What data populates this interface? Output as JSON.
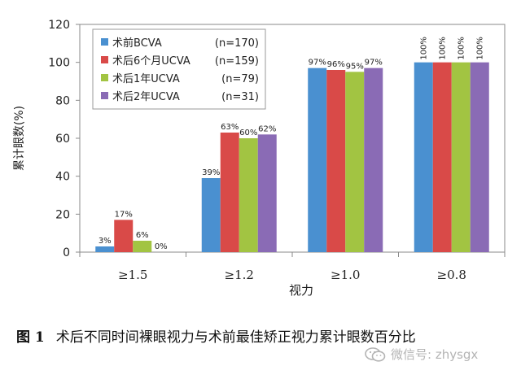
{
  "chart_data": {
    "type": "bar",
    "title": "",
    "xlabel": "视力",
    "ylabel": "累计眼数(%)",
    "ylim": [
      0,
      120
    ],
    "yticks": [
      "0",
      "20",
      "40",
      "60",
      "80",
      "100",
      "120"
    ],
    "categories": [
      "≥1.5",
      "≥1.2",
      "≥1.0",
      "≥0.8"
    ],
    "grid": false,
    "legend_position": "top-left",
    "series": [
      {
        "name": "术前BCVA",
        "n_label": "(n=170)",
        "color": "#4a90d0",
        "values": [
          3,
          39,
          97,
          100
        ],
        "labels": [
          "3%",
          "39%",
          "97%",
          "100%"
        ]
      },
      {
        "name": "术后6个月UCVA",
        "n_label": "(n=159)",
        "color": "#d94a48",
        "values": [
          17,
          63,
          96,
          100
        ],
        "labels": [
          "17%",
          "63%",
          "96%",
          "100%"
        ]
      },
      {
        "name": "术后1年UCVA",
        "n_label": "(n=79)",
        "color": "#a2c442",
        "values": [
          6,
          60,
          95,
          100
        ],
        "labels": [
          "6%",
          "60%",
          "95%",
          "100%"
        ]
      },
      {
        "name": "术后2年UCVA",
        "n_label": "(n=31)",
        "color": "#8a6bb5",
        "values": [
          0,
          62,
          97,
          100
        ],
        "labels": [
          "0%",
          "62%",
          "97%",
          "100%"
        ]
      }
    ]
  },
  "caption": {
    "figure_number": "图 1",
    "text": "术后不同时间裸眼视力与术前最佳矫正视力累计眼数百分比"
  },
  "watermark": {
    "text": "微信号: zhysgx",
    "icon": "wechat-icon"
  }
}
